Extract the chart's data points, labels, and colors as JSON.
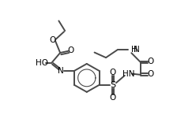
{
  "bg_color": "#ffffff",
  "line_color": "#4a4a4a",
  "text_color": "#000000",
  "figsize": [
    2.24,
    1.65
  ],
  "dpi": 100,
  "xlim": [
    0,
    10
  ],
  "ylim": [
    0,
    7.5
  ]
}
